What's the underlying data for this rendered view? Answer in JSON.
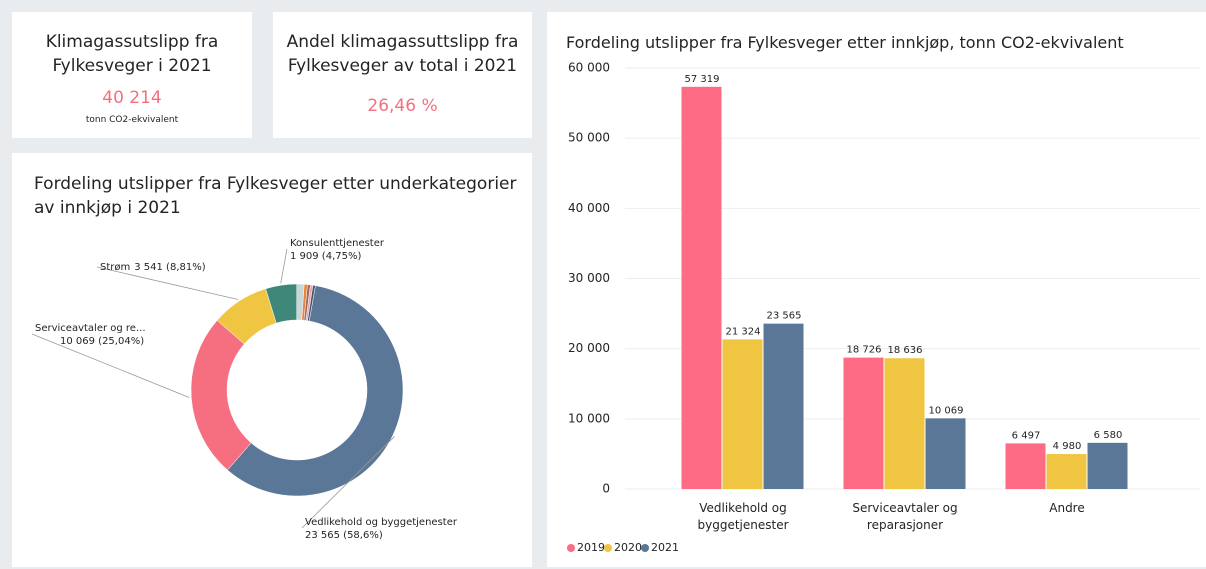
{
  "cards": [
    {
      "title": "Klimagassutslipp fra Fylkesveger i 2021",
      "value": "40 214",
      "unit": "tonn CO2-ekvivalent"
    },
    {
      "title": "Andel klimagassuttslipp fra Fylkesveger av total i 2021",
      "value": "26,46 %"
    }
  ],
  "chart_data": [
    {
      "type": "donut",
      "title": "Fordeling utslipper fra Fylkesveger etter underkategorier av innkjøp i 2021",
      "categories": [
        "Vedlikehold og byggetjenester",
        "Serviceavtaler og re...",
        "Strøm",
        "Konsulenttjenester",
        null,
        null,
        null,
        null,
        null
      ],
      "values": [
        23565,
        10069,
        3541,
        1909,
        450,
        200,
        180,
        150,
        150
      ],
      "value_labels": [
        "23 565 (58,6%)",
        "10 069 (25,04%)",
        "3 541 (8,81%)",
        "1 909 (4,75%)",
        null,
        null,
        null,
        null,
        null
      ],
      "colors": [
        "#5b7797",
        "#f66f81",
        "#f0c541",
        "#3e8779",
        "#c9d6d8",
        "#e8833a",
        "#9c6b5e",
        "#e6a0b0",
        "#44546a"
      ]
    },
    {
      "type": "bar",
      "title": "Fordeling utslipper fra Fylkesveger etter innkjøp, tonn CO2-ekvivalent",
      "categories": [
        "Vedlikehold og byggetjenester",
        "Serviceavtaler og reparasjoner",
        "Andre"
      ],
      "series": [
        {
          "name": "2019",
          "color": "#fd6b85",
          "values": [
            57319,
            18726,
            6497
          ],
          "value_labels": [
            "57 319",
            "18 726",
            "6 497"
          ]
        },
        {
          "name": "2020",
          "color": "#f0c541",
          "values": [
            21324,
            18636,
            4980
          ],
          "value_labels": [
            "21 324",
            "18 636",
            "4 980"
          ]
        },
        {
          "name": "2021",
          "color": "#5b7797",
          "values": [
            23565,
            10069,
            6580
          ],
          "value_labels": [
            "23 565",
            "10 069",
            "6 580"
          ]
        }
      ],
      "ylim": [
        0,
        60000
      ],
      "yticks": [
        0,
        {
          "value": 10000,
          "label": "10 000"
        },
        {
          "value": 20000,
          "label": "20 000"
        },
        {
          "value": 30000,
          "label": "30 000"
        },
        {
          "value": 40000,
          "label": "40 000"
        },
        {
          "value": 50000,
          "label": "50 000"
        },
        {
          "value": 60000,
          "label": "60 000"
        }
      ],
      "grid": true,
      "legend": "bottom-left"
    }
  ]
}
